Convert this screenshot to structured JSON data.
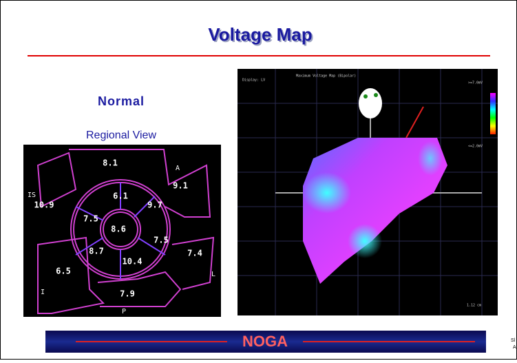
{
  "header": {
    "title": "Voltage Map"
  },
  "left_panel": {
    "heading": "Normal",
    "subheading": "Regional View",
    "segments": [
      {
        "label": "8.1"
      },
      {
        "label": "9.1"
      },
      {
        "label": "10.9"
      },
      {
        "label": "6.1"
      },
      {
        "label": "9.7"
      },
      {
        "label": "7.5"
      },
      {
        "label": "8.6"
      },
      {
        "label": "7.5"
      },
      {
        "label": "7.4"
      },
      {
        "label": "8.7"
      },
      {
        "label": "10.4"
      },
      {
        "label": "6.5"
      },
      {
        "label": "7.9"
      }
    ],
    "walls": [
      "A",
      "IS",
      "L",
      "I",
      "P"
    ]
  },
  "right_panel": {
    "display": "Display: LV",
    "map_title": "Maximum Voltage Map (Bipolar)",
    "scale_max": ">=7.0mV",
    "scale_min": "<=2.0mV",
    "scale_length": "1.12 cm"
  },
  "footer": {
    "logo": "NOGA",
    "corner_text": [
      "Sl",
      "A"
    ]
  }
}
